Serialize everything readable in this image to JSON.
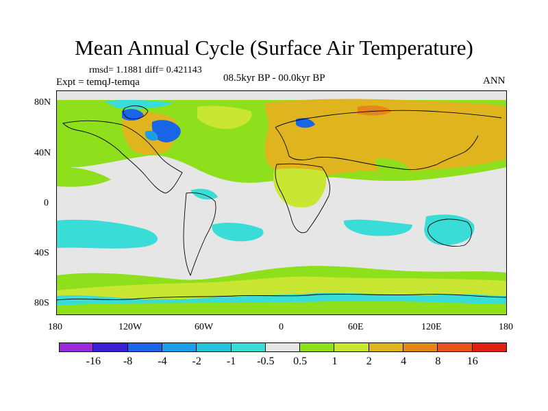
{
  "title": "Mean Annual Cycle (Surface Air Temperature)",
  "stats_text": "rmsd= 1.1881 diff= 0.421143",
  "experiment_label": "Expt = temqJ-temqa",
  "period_label": "08.5kyr BP - 00.0kyr BP",
  "season_label": "ANN",
  "map": {
    "lat_range": [
      -90,
      90
    ],
    "lon_range": [
      -180,
      180
    ],
    "lat_ticks": [
      "80N",
      "40N",
      "0",
      "40S",
      "80S"
    ],
    "lon_ticks": [
      "180",
      "120W",
      "60W",
      "0",
      "60E",
      "120E",
      "180"
    ],
    "background_color": "#e6e6e6"
  },
  "colorbar": {
    "colors": [
      "#9b2ad8",
      "#3a1fd6",
      "#1a64e6",
      "#1e9ee8",
      "#26c4dc",
      "#39dcd6",
      "#e6e6e6",
      "#8ee01c",
      "#c8e632",
      "#e0b41e",
      "#e68618",
      "#e6541a",
      "#e02010"
    ],
    "labels": [
      "-16",
      "-8",
      "-4",
      "-2",
      "-1",
      "-0.5",
      "0.5",
      "1",
      "2",
      "4",
      "8",
      "16"
    ]
  }
}
